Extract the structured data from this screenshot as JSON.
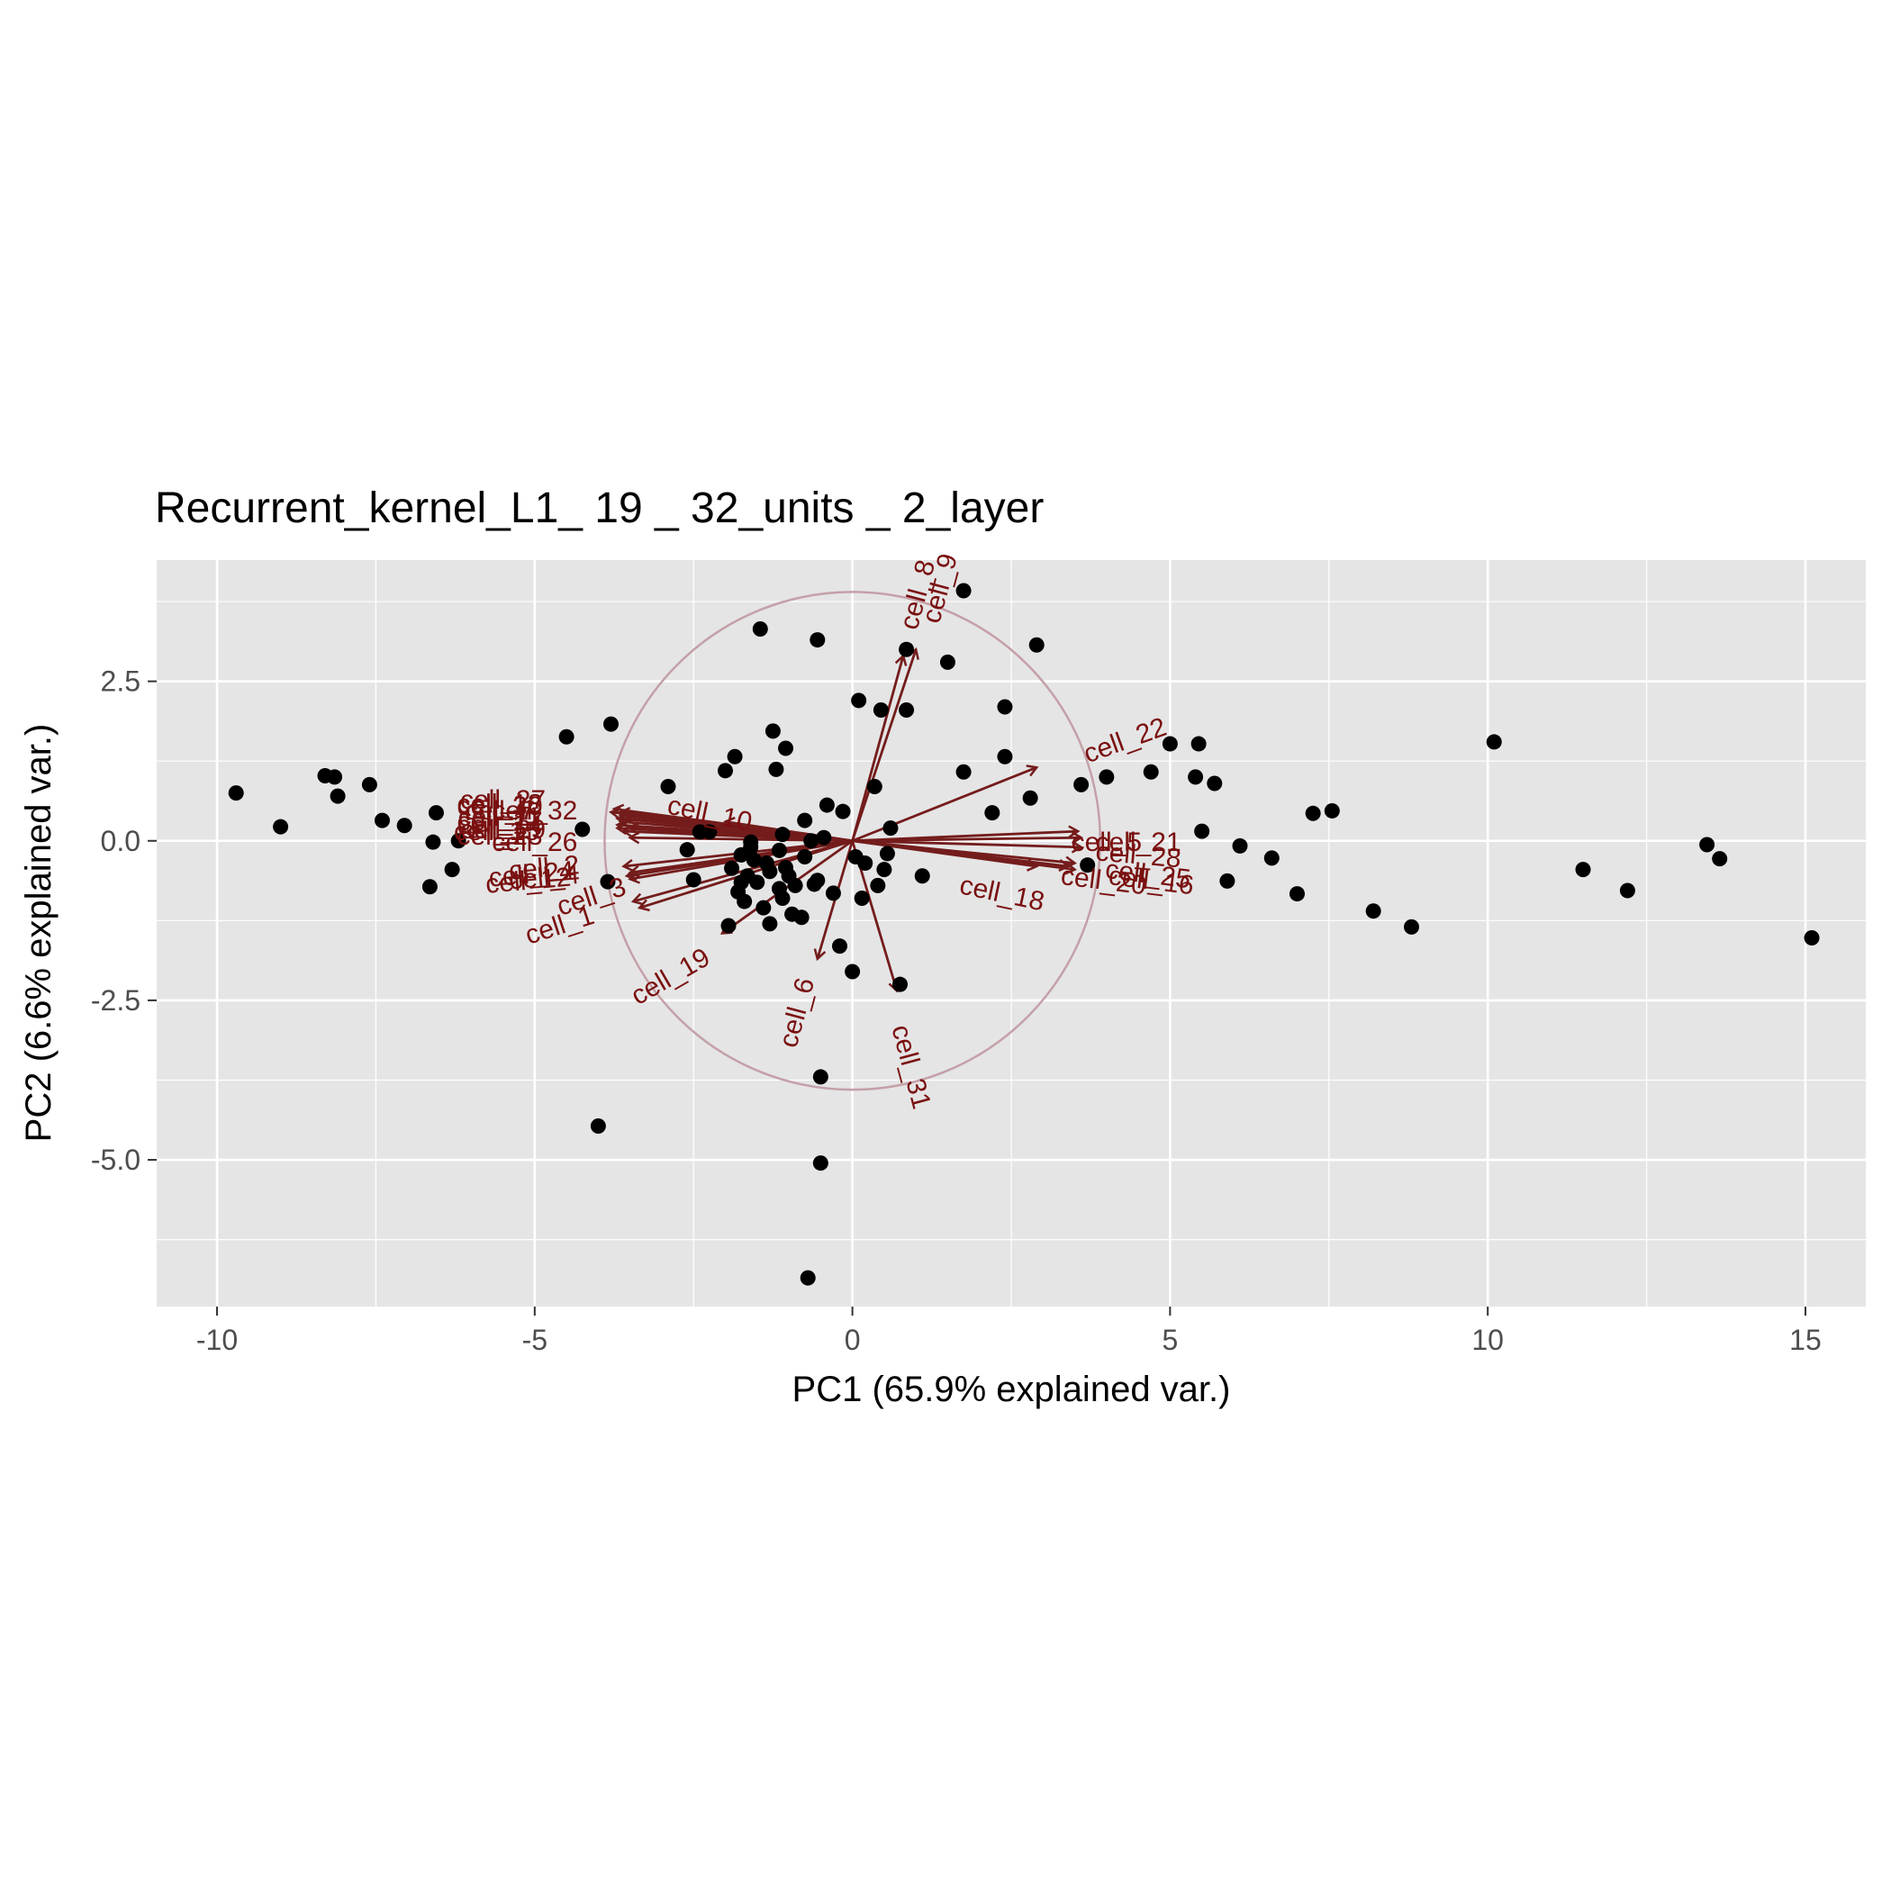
{
  "chart_data": {
    "type": "scatter",
    "title": "Recurrent_kernel_L1_ 19 _ 32_units _ 2_layer",
    "xlabel": "PC1 (65.9% explained var.)",
    "ylabel": "PC2 (6.6% explained var.)",
    "xlim": [
      -10.95,
      15.95
    ],
    "ylim": [
      -7.3,
      4.4
    ],
    "x_ticks": [
      -10,
      -5,
      0,
      5,
      10,
      15
    ],
    "x_tick_labels": [
      "-10",
      "-5",
      "0",
      "5",
      "10",
      "15"
    ],
    "y_ticks": [
      2.5,
      0.0,
      -2.5,
      -5.0
    ],
    "y_tick_labels": [
      "2.5",
      "0.0",
      "-2.5",
      "-5.0"
    ],
    "grid": true,
    "circle_radius": 3.9,
    "colors": {
      "panel": "#e5e5e5",
      "grid": "#ffffff",
      "points": "#000000",
      "arrows": "#741c1c",
      "arrow_labels": "#7a1010",
      "circle": "#c4a0a8"
    },
    "points": [
      [
        -9.7,
        0.75
      ],
      [
        -9.0,
        0.22
      ],
      [
        -8.3,
        1.02
      ],
      [
        -8.15,
        1.0
      ],
      [
        -8.1,
        0.7
      ],
      [
        -7.6,
        0.88
      ],
      [
        -7.4,
        0.32
      ],
      [
        -7.05,
        0.24
      ],
      [
        -6.65,
        -0.72
      ],
      [
        -6.6,
        -0.02
      ],
      [
        -6.55,
        0.44
      ],
      [
        -6.3,
        -0.45
      ],
      [
        -6.2,
        0.0
      ],
      [
        -4.5,
        1.63
      ],
      [
        -4.25,
        0.18
      ],
      [
        -4.0,
        -4.47
      ],
      [
        -3.85,
        -0.64
      ],
      [
        -3.8,
        1.83
      ],
      [
        -2.9,
        0.85
      ],
      [
        -2.6,
        -0.14
      ],
      [
        -2.5,
        -0.61
      ],
      [
        -2.4,
        0.14
      ],
      [
        -2.25,
        0.14
      ],
      [
        -1.95,
        -1.33
      ],
      [
        -1.9,
        -0.43
      ],
      [
        -1.8,
        -0.8
      ],
      [
        -1.75,
        -0.22
      ],
      [
        -1.7,
        -0.95
      ],
      [
        -1.65,
        -0.55
      ],
      [
        -1.6,
        -0.02
      ],
      [
        -1.55,
        -0.3
      ],
      [
        -1.5,
        -0.65
      ],
      [
        -1.45,
        3.32
      ],
      [
        -1.4,
        -1.05
      ],
      [
        -1.35,
        -0.35
      ],
      [
        -1.3,
        -0.48
      ],
      [
        -1.2,
        1.12
      ],
      [
        -1.15,
        -0.15
      ],
      [
        -1.1,
        -0.9
      ],
      [
        -1.05,
        -0.42
      ],
      [
        -1.0,
        -0.55
      ],
      [
        -0.9,
        -0.7
      ],
      [
        -0.8,
        -1.2
      ],
      [
        -0.75,
        -0.25
      ],
      [
        -0.65,
        0.0
      ],
      [
        -0.6,
        -0.68
      ],
      [
        -0.55,
        3.15
      ],
      [
        -0.45,
        0.05
      ],
      [
        -0.4,
        0.56
      ],
      [
        -0.3,
        -0.82
      ],
      [
        -0.2,
        -1.65
      ],
      [
        -0.15,
        0.46
      ],
      [
        0.0,
        -2.05
      ],
      [
        0.05,
        -0.25
      ],
      [
        0.1,
        2.2
      ],
      [
        0.15,
        -0.9
      ],
      [
        0.2,
        -0.35
      ],
      [
        0.35,
        0.85
      ],
      [
        0.4,
        -0.7
      ],
      [
        0.45,
        2.05
      ],
      [
        0.5,
        -0.45
      ],
      [
        0.55,
        -0.2
      ],
      [
        0.6,
        0.2
      ],
      [
        0.75,
        -2.25
      ],
      [
        0.85,
        3.0
      ],
      [
        0.85,
        2.05
      ],
      [
        1.1,
        -0.55
      ],
      [
        1.5,
        2.8
      ],
      [
        1.75,
        3.92
      ],
      [
        1.75,
        1.08
      ],
      [
        2.2,
        0.44
      ],
      [
        2.4,
        1.32
      ],
      [
        2.4,
        2.1
      ],
      [
        2.8,
        0.67
      ],
      [
        2.9,
        3.07
      ],
      [
        3.6,
        0.88
      ],
      [
        3.7,
        -0.38
      ],
      [
        4.0,
        1.0
      ],
      [
        4.7,
        1.08
      ],
      [
        5.0,
        1.52
      ],
      [
        5.4,
        1.0
      ],
      [
        5.45,
        1.52
      ],
      [
        5.5,
        0.15
      ],
      [
        5.7,
        0.9
      ],
      [
        5.9,
        -0.63
      ],
      [
        6.1,
        -0.08
      ],
      [
        6.6,
        -0.27
      ],
      [
        7.0,
        -0.83
      ],
      [
        7.25,
        0.43
      ],
      [
        7.55,
        0.47
      ],
      [
        8.2,
        -1.1
      ],
      [
        8.8,
        -1.35
      ],
      [
        10.1,
        1.55
      ],
      [
        11.5,
        -0.45
      ],
      [
        12.2,
        -0.78
      ],
      [
        13.45,
        -0.06
      ],
      [
        13.65,
        -0.28
      ],
      [
        15.1,
        -1.52
      ],
      [
        -1.6,
        -0.1
      ],
      [
        -1.1,
        0.1
      ],
      [
        -1.25,
        1.72
      ],
      [
        -1.05,
        1.45
      ],
      [
        -0.75,
        0.32
      ],
      [
        -1.85,
        1.32
      ],
      [
        -2.0,
        1.1
      ],
      [
        -0.5,
        -5.05
      ],
      [
        -0.5,
        -3.7
      ],
      [
        -0.7,
        -6.85
      ],
      [
        -0.55,
        -0.62
      ],
      [
        -1.3,
        -1.3
      ],
      [
        -1.75,
        -0.65
      ],
      [
        -1.15,
        -0.75
      ],
      [
        -0.95,
        -1.15
      ]
    ],
    "arrows": [
      {
        "name": "cell_8",
        "x": 0.8,
        "y": 2.9,
        "lx": 1.05,
        "ly": 3.85,
        "rot": -75
      },
      {
        "name": "cell_9",
        "x": 1.0,
        "y": 3.0,
        "lx": 1.4,
        "ly": 3.95,
        "rot": -75
      },
      {
        "name": "cell_22",
        "x": 2.9,
        "y": 1.15,
        "lx": 4.3,
        "ly": 1.55,
        "rot": -20
      },
      {
        "name": "cell_21",
        "x": 3.55,
        "y": 0.15,
        "lx": 4.5,
        "ly": -0.05,
        "rot": 0
      },
      {
        "name": "cell_5",
        "x": 3.6,
        "y": 0.05,
        "lx": 4.0,
        "ly": -0.05,
        "rot": 0
      },
      {
        "name": "cell_28",
        "x": 3.6,
        "y": -0.1,
        "lx": 4.5,
        "ly": -0.25,
        "rot": 5
      },
      {
        "name": "cell_25",
        "x": 3.5,
        "y": -0.35,
        "lx": 4.65,
        "ly": -0.55,
        "rot": 7
      },
      {
        "name": "cell_16",
        "x": 3.5,
        "y": -0.45,
        "lx": 4.7,
        "ly": -0.65,
        "rot": 7
      },
      {
        "name": "cell_20",
        "x": 3.4,
        "y": -0.4,
        "lx": 3.95,
        "ly": -0.65,
        "rot": 7
      },
      {
        "name": "cell_18",
        "x": 2.9,
        "y": -0.4,
        "lx": 2.35,
        "ly": -0.85,
        "rot": 12
      },
      {
        "name": "cell_31",
        "x": 0.7,
        "y": -2.35,
        "lx": 0.9,
        "ly": -3.55,
        "rot": 75
      },
      {
        "name": "cell_6",
        "x": -0.55,
        "y": -1.85,
        "lx": -0.85,
        "ly": -2.7,
        "rot": -75
      },
      {
        "name": "cell_19",
        "x": -2.05,
        "y": -1.45,
        "lx": -2.85,
        "ly": -2.15,
        "rot": -30
      },
      {
        "name": "cell_3",
        "x": -3.35,
        "y": -1.05,
        "lx": -4.1,
        "ly": -0.9,
        "rot": -18
      },
      {
        "name": "cell_1",
        "x": -3.45,
        "y": -0.95,
        "lx": -4.6,
        "ly": -1.35,
        "rot": -18
      },
      {
        "name": "cell_4",
        "x": -3.5,
        "y": -0.5,
        "lx": -4.85,
        "ly": -0.6,
        "rot": -5
      },
      {
        "name": "cell_12",
        "x": -3.5,
        "y": -0.6,
        "lx": -5.1,
        "ly": -0.65,
        "rot": -5
      },
      {
        "name": "cell_2",
        "x": -3.6,
        "y": -0.4,
        "lx": -4.85,
        "ly": -0.45,
        "rot": -5
      },
      {
        "name": "cell_24",
        "x": -3.55,
        "y": -0.55,
        "lx": -5.05,
        "ly": -0.55,
        "rot": -5
      },
      {
        "name": "cell_26",
        "x": -3.5,
        "y": 0.05,
        "lx": -5.0,
        "ly": -0.05,
        "rot": 0
      },
      {
        "name": "cell_10",
        "x": -2.0,
        "y": 0.3,
        "lx": -2.25,
        "ly": 0.4,
        "rot": 12
      },
      {
        "name": "cell_13",
        "x": -3.75,
        "y": 0.5,
        "lx": -5.55,
        "ly": 0.55,
        "rot": 0
      },
      {
        "name": "cell_32",
        "x": -3.8,
        "y": 0.45,
        "lx": -5.0,
        "ly": 0.45,
        "rot": 0
      },
      {
        "name": "cell_11",
        "x": -3.7,
        "y": 0.35,
        "lx": -5.55,
        "ly": 0.35,
        "rot": 0
      },
      {
        "name": "cell_14",
        "x": -3.7,
        "y": 0.25,
        "lx": -5.55,
        "ly": 0.22,
        "rot": 0
      },
      {
        "name": "cell_15",
        "x": -3.7,
        "y": 0.2,
        "lx": -5.6,
        "ly": 0.12,
        "rot": 0
      },
      {
        "name": "cell_7",
        "x": -3.65,
        "y": 0.4,
        "lx": -5.55,
        "ly": 0.45,
        "rot": 0
      },
      {
        "name": "cell_17",
        "x": -3.65,
        "y": 0.3,
        "lx": -5.55,
        "ly": 0.28,
        "rot": 0
      },
      {
        "name": "cell_23",
        "x": -3.6,
        "y": 0.15,
        "lx": -5.55,
        "ly": 0.05,
        "rot": 0
      },
      {
        "name": "cell_27",
        "x": -3.55,
        "y": 0.35,
        "lx": -5.5,
        "ly": 0.62,
        "rot": 0
      },
      {
        "name": "cell_29",
        "x": -3.5,
        "y": 0.2,
        "lx": -5.5,
        "ly": 0.15,
        "rot": 0
      },
      {
        "name": "cell_30",
        "x": -3.65,
        "y": 0.45,
        "lx": -5.55,
        "ly": 0.52,
        "rot": 0
      }
    ]
  }
}
